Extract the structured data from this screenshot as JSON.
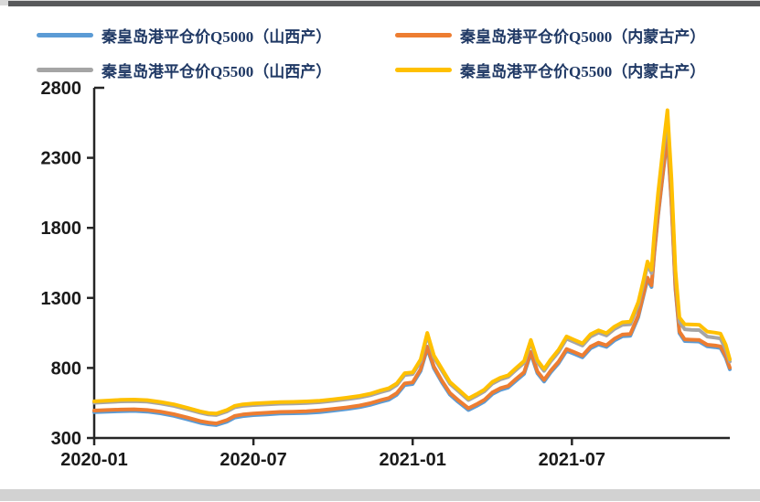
{
  "page": {
    "background": "#ffffff",
    "top_bar_color": "#58595b",
    "bottom_bar_color": "#d2d2d2"
  },
  "chart_data": {
    "type": "line",
    "title": "",
    "legend_position": "top",
    "grid": false,
    "axis_color": "#262626",
    "x_axis": {
      "label": "",
      "tick_labels": [
        "2020-01",
        "2020-07",
        "2021-01",
        "2021-07"
      ],
      "tick_months": [
        0,
        6,
        12,
        18
      ],
      "range_months": [
        0,
        23.95
      ]
    },
    "y_axis": {
      "label": "",
      "ticks": [
        300,
        800,
        1300,
        1800,
        2300,
        2800
      ],
      "range": [
        300,
        2800
      ]
    },
    "x_months": [
      0,
      0.5,
      1,
      1.5,
      2,
      2.5,
      3,
      3.5,
      4,
      4.3,
      4.6,
      5,
      5.3,
      5.6,
      6,
      6.5,
      7,
      7.5,
      8,
      8.5,
      9,
      9.5,
      10,
      10.4,
      10.8,
      11.1,
      11.4,
      11.7,
      12,
      12.3,
      12.55,
      12.8,
      13.1,
      13.4,
      13.7,
      14.1,
      14.4,
      14.7,
      15,
      15.3,
      15.6,
      15.9,
      16.2,
      16.45,
      16.7,
      16.95,
      17.2,
      17.5,
      17.8,
      18.1,
      18.4,
      18.7,
      19,
      19.3,
      19.6,
      19.9,
      20.2,
      20.5,
      20.7,
      20.85,
      21,
      21.1,
      21.25,
      21.45,
      21.6,
      21.75,
      21.9,
      22.05,
      22.25,
      22.5,
      22.8,
      23.1,
      23.4,
      23.6,
      23.8,
      23.95
    ],
    "series": [
      {
        "name": "秦皇岛港平仓价Q5000（山西产）",
        "color": "#5B9BD5",
        "values": [
          484,
          488,
          491,
          493,
          488,
          476,
          458,
          434,
          408,
          398,
          392,
          416,
          446,
          456,
          463,
          468,
          474,
          476,
          479,
          485,
          495,
          506,
          520,
          536,
          558,
          573,
          608,
          678,
          685,
          778,
          940,
          798,
          698,
          610,
          560,
          500,
          528,
          560,
          613,
          643,
          660,
          710,
          758,
          903,
          763,
          703,
          768,
          833,
          923,
          900,
          876,
          940,
          968,
          950,
          996,
          1026,
          1030,
          1163,
          1318,
          1433,
          1378,
          1608,
          1888,
          2218,
          2450,
          1978,
          1368,
          1048,
          992,
          990,
          988,
          954,
          948,
          942,
          872,
          790
        ]
      },
      {
        "name": "秦皇岛港平仓价Q5000（内蒙古产）",
        "color": "#ED7D31",
        "values": [
          496,
          500,
          503,
          505,
          500,
          488,
          470,
          446,
          420,
          410,
          404,
          428,
          458,
          468,
          475,
          480,
          486,
          488,
          491,
          497,
          507,
          518,
          532,
          548,
          570,
          585,
          620,
          690,
          697,
          790,
          952,
          810,
          710,
          622,
          572,
          512,
          540,
          572,
          625,
          655,
          672,
          722,
          770,
          915,
          775,
          715,
          780,
          845,
          935,
          912,
          888,
          952,
          980,
          962,
          1008,
          1038,
          1042,
          1175,
          1330,
          1445,
          1390,
          1620,
          1900,
          2230,
          2470,
          1990,
          1380,
          1060,
          1004,
          1002,
          1000,
          966,
          960,
          954,
          884,
          802
        ]
      },
      {
        "name": "秦皇岛港平仓价Q5500（山西产）",
        "color": "#A5A5A5",
        "values": [
          551,
          556,
          561,
          563,
          559,
          546,
          529,
          505,
          480,
          468,
          464,
          489,
          519,
          529,
          535,
          540,
          545,
          547,
          550,
          555,
          565,
          576,
          589,
          605,
          628,
          643,
          678,
          750,
          756,
          846,
          1034,
          876,
          782,
          688,
          638,
          571,
          600,
          633,
          688,
          718,
          736,
          787,
          837,
          984,
          841,
          779,
          846,
          915,
          1009,
          984,
          960,
          1024,
          1052,
          1032,
          1078,
          1108,
          1112,
          1250,
          1408,
          1536,
          1477,
          1724,
          2020,
          2360,
          2590,
          2110,
          1465,
          1130,
          1076,
          1072,
          1070,
          1024,
          1016,
          1010,
          932,
          846
        ]
      },
      {
        "name": "秦皇岛港平仓价Q5500（内蒙古产）",
        "color": "#FFC000",
        "values": [
          562,
          567,
          572,
          574,
          570,
          557,
          540,
          516,
          490,
          478,
          474,
          500,
          530,
          540,
          546,
          551,
          556,
          558,
          561,
          566,
          576,
          587,
          600,
          616,
          640,
          655,
          690,
          763,
          768,
          860,
          1050,
          890,
          795,
          700,
          650,
          582,
          612,
          645,
          700,
          730,
          748,
          800,
          850,
          1000,
          855,
          792,
          860,
          930,
          1025,
          1000,
          975,
          1040,
          1068,
          1048,
          1095,
          1126,
          1130,
          1270,
          1430,
          1560,
          1500,
          1750,
          2050,
          2400,
          2640,
          2150,
          1500,
          1160,
          1112,
          1110,
          1108,
          1060,
          1052,
          1045,
          965,
          862
        ]
      }
    ]
  }
}
